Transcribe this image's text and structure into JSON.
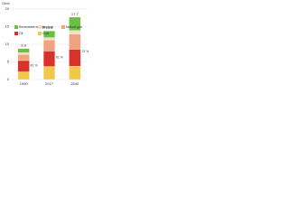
{
  "chart_data": {
    "type": "stacked_bar",
    "y_label": "Gtoe",
    "categories": [
      "1990",
      "2017",
      "2040"
    ],
    "series": [
      {
        "name": "Coal",
        "color": "#f2c84b",
        "values": [
          2.2,
          3.7,
          3.8
        ]
      },
      {
        "name": "Oil",
        "color": "#d9322b",
        "values": [
          3.2,
          4.4,
          4.8
        ]
      },
      {
        "name": "Natural gas",
        "color": "#f0a37e",
        "values": [
          1.7,
          3.1,
          4.3
        ]
      },
      {
        "name": "Nuclear",
        "color": "#f7dcc4",
        "values": [
          0.5,
          0.7,
          1.0
        ]
      },
      {
        "name": "Renewable energy",
        "color": "#6bbf45",
        "values": [
          1.2,
          1.9,
          3.8
        ]
      }
    ],
    "totals": [
      8.8,
      13.8,
      17.7
    ],
    "fossil_share_labels": [
      "81 %",
      "81 %",
      "73 %"
    ],
    "ylim": [
      0,
      20
    ],
    "yticks": [
      0,
      5,
      10,
      15,
      20
    ],
    "grid": true,
    "legend_order": [
      "Renewable energy",
      "Nuclear",
      "Natural gas",
      "Oil",
      "Coal"
    ]
  }
}
